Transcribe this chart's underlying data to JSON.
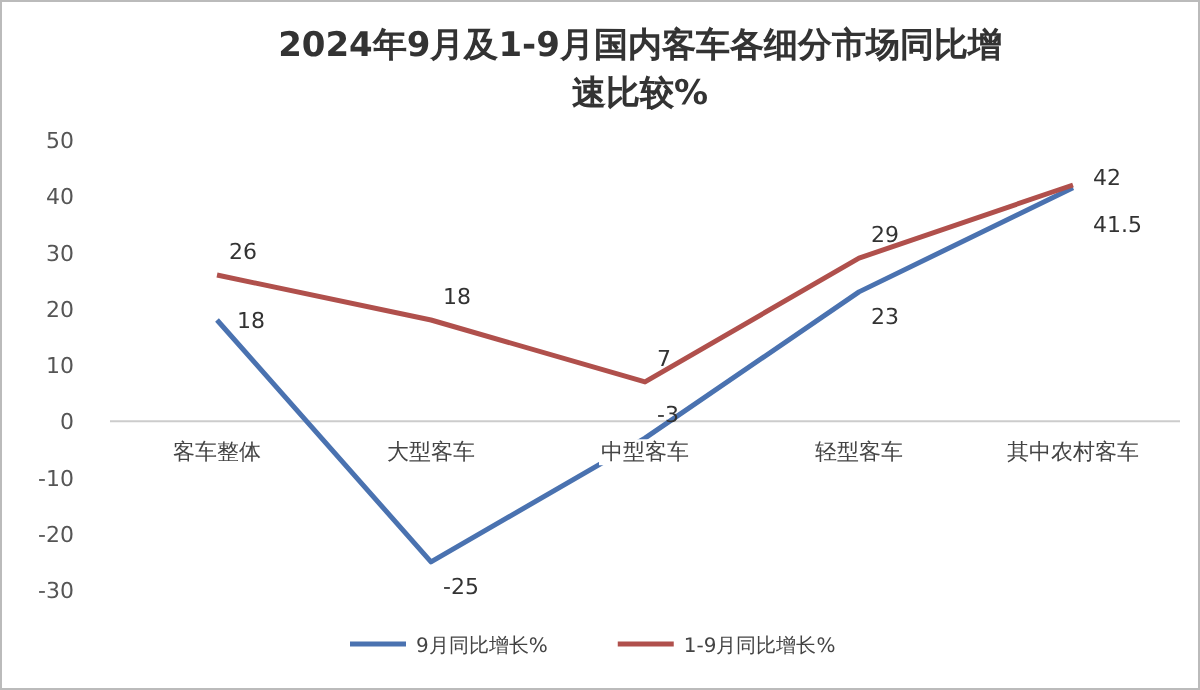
{
  "chart_data": {
    "type": "line",
    "title": "2024年9月及1-9月国内客车各细分市场同比增速比较%",
    "categories": [
      "客车整体",
      "大型客车",
      "中型客车",
      "轻型客车",
      "其中农村客车"
    ],
    "series": [
      {
        "name": "9月同比增长%",
        "color": "#4a72b0",
        "values": [
          18,
          -25,
          -3,
          23,
          41.5
        ]
      },
      {
        "name": "1-9月同比增长%",
        "color": "#b0504c",
        "values": [
          26,
          18,
          7,
          29,
          42
        ]
      }
    ],
    "ylim": [
      -30,
      50
    ],
    "yticks": [
      -30,
      -20,
      -10,
      0,
      10,
      20,
      30,
      40,
      50
    ],
    "data_labels": true,
    "legend": "bottom",
    "grid": false,
    "marker": "none",
    "line_style": "solid"
  }
}
